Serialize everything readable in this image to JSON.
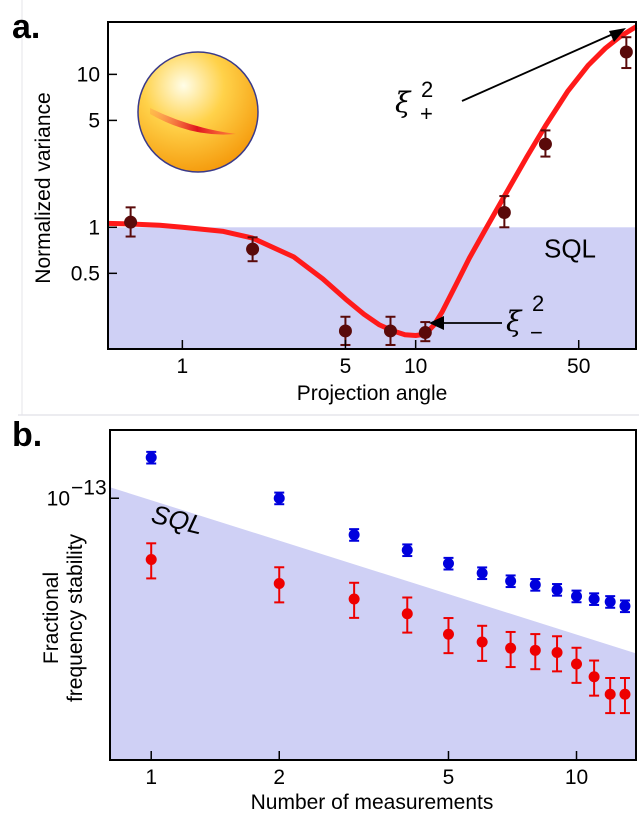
{
  "chart_data": [
    {
      "panel": "a.",
      "type": "scatter",
      "title": "",
      "xlabel": "Projection angle",
      "ylabel": "Normalized variance",
      "xscale": "log",
      "yscale": "log",
      "xlim": [
        0.48,
        88
      ],
      "ylim": [
        0.16,
        22
      ],
      "xticks": [
        1,
        5,
        10,
        50
      ],
      "xtick_labels": [
        "1",
        "5",
        "10",
        "50"
      ],
      "yticks": [
        0.5,
        1,
        5,
        10
      ],
      "ytick_labels": [
        "0.5",
        "1",
        "5",
        "10"
      ],
      "sql_level": 1,
      "sql_label": "SQL",
      "annotations": [
        {
          "symbol": "ξ",
          "superscript": "2",
          "subscript": "+"
        },
        {
          "symbol": "ξ",
          "superscript": "2",
          "subscript": "−"
        }
      ],
      "series": [
        {
          "name": "",
          "color": "#5a0a0a",
          "x": [
            0.6,
            2.0,
            5.0,
            7.8,
            11.0,
            24.0,
            36.0,
            80.0
          ],
          "y": [
            1.08,
            0.72,
            0.21,
            0.21,
            0.205,
            1.25,
            3.5,
            14.0
          ],
          "err_low": [
            0.87,
            0.6,
            0.17,
            0.17,
            0.18,
            1.0,
            2.9,
            11.0
          ],
          "err_high": [
            1.35,
            0.86,
            0.26,
            0.26,
            0.24,
            1.6,
            4.3,
            17.5
          ]
        }
      ],
      "fit_curve": {
        "color": "#ff1a1a",
        "x": [
          0.48,
          0.6,
          0.8,
          1.0,
          1.5,
          2.0,
          3.0,
          4.0,
          5.0,
          6.0,
          7.0,
          8.0,
          9.0,
          10.0,
          11.0,
          12.0,
          13.0,
          15.0,
          17.0,
          20.0,
          24.0,
          30.0,
          36.0,
          45.0,
          55.0,
          65.0,
          75.0,
          88.0
        ],
        "y": [
          1.06,
          1.05,
          1.03,
          1.0,
          0.94,
          0.85,
          0.64,
          0.46,
          0.34,
          0.27,
          0.23,
          0.21,
          0.198,
          0.196,
          0.2,
          0.23,
          0.28,
          0.43,
          0.63,
          0.98,
          1.6,
          2.9,
          4.6,
          7.8,
          11.5,
          14.8,
          17.6,
          20.5
        ]
      }
    },
    {
      "panel": "b.",
      "type": "scatter",
      "title": "",
      "xlabel": "Number of measurements",
      "ylabel": "Fractional frequency stability",
      "xscale": "log",
      "yscale": "log",
      "xlim": [
        0.8,
        13.8
      ],
      "ylim": [
        1.05e-14,
        1.8e-13
      ],
      "xticks": [
        1,
        2,
        5,
        10
      ],
      "xtick_labels": [
        "1",
        "2",
        "5",
        "10"
      ],
      "yticks": [
        1e-13
      ],
      "ytick_labels": [
        "10"
      ],
      "ytick_exponent": "−13",
      "sql_label": "SQL",
      "sql_line": {
        "x": [
          0.8,
          13.8
        ],
        "y": [
          1.1e-13,
          2.63e-14
        ]
      },
      "series": [
        {
          "name": "",
          "color": "#0000dd",
          "x": [
            1,
            2,
            3,
            4,
            5,
            6,
            7,
            8,
            9,
            10,
            11,
            12,
            13
          ],
          "y": [
            1.42e-13,
            1e-13,
            7.3e-14,
            6.4e-14,
            5.7e-14,
            5.25e-14,
            4.9e-14,
            4.75e-14,
            4.55e-14,
            4.3e-14,
            4.2e-14,
            4.1e-14,
            3.95e-14
          ],
          "err_frac": 0.05
        },
        {
          "name": "",
          "color": "#ee0000",
          "x": [
            1,
            2,
            3,
            4,
            5,
            6,
            7,
            8,
            9,
            10,
            11,
            12,
            13
          ],
          "y": [
            5.9e-14,
            4.8e-14,
            4.2e-14,
            3.7e-14,
            3.1e-14,
            2.9e-14,
            2.75e-14,
            2.7e-14,
            2.65e-14,
            2.4e-14,
            2.15e-14,
            1.85e-14,
            1.85e-14
          ],
          "err_frac": 0.15
        }
      ]
    }
  ]
}
